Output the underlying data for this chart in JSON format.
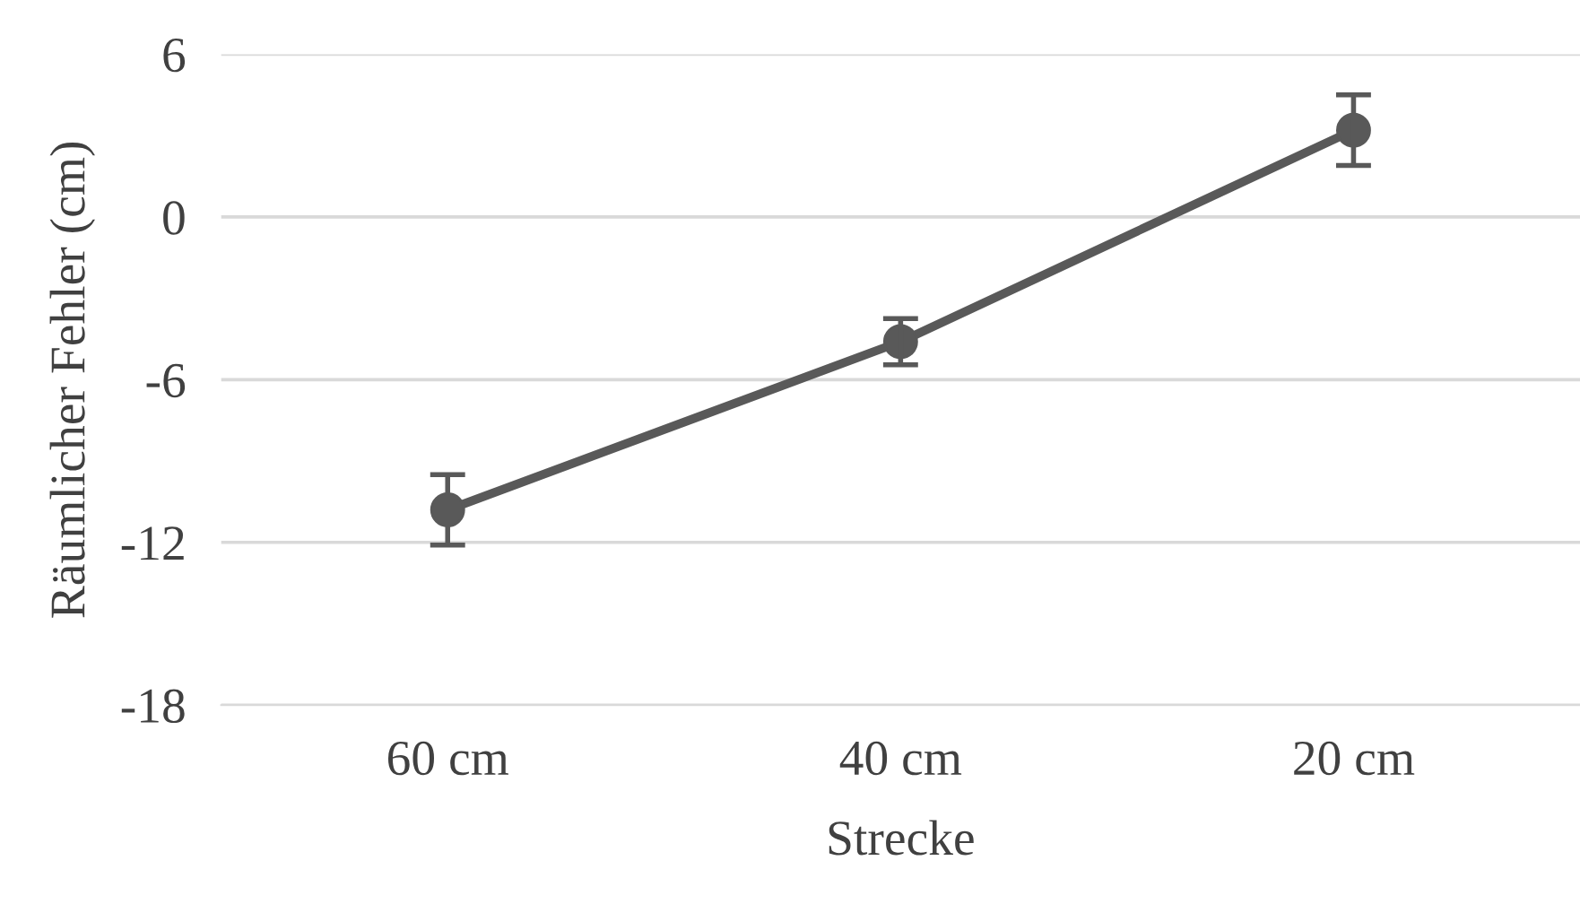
{
  "chart_data": {
    "type": "line",
    "xlabel": "Strecke",
    "ylabel": "Räumlicher Fehler (cm)",
    "categories": [
      "60 cm",
      "40 cm",
      "20 cm"
    ],
    "series": [
      {
        "color": "#595959",
        "values": [
          -10.8,
          -4.6,
          3.2
        ],
        "errors": [
          1.3,
          0.85,
          1.3
        ]
      }
    ],
    "ylim": [
      -18,
      6
    ],
    "yticks": [
      -18,
      -12,
      -6,
      0,
      6
    ],
    "grid": "y",
    "marker": "circle",
    "line_style": "solid"
  }
}
